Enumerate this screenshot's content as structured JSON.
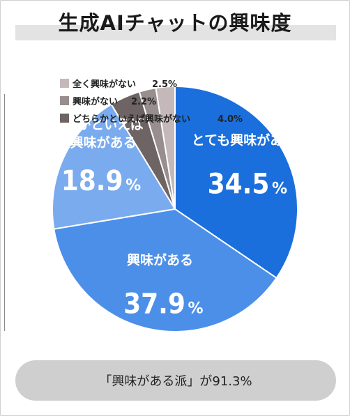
{
  "title": "生成AIチャットの興味度",
  "footer": "「興味がある派」が91.3%",
  "chart_data": {
    "type": "pie",
    "title": "生成AIチャットの興味度",
    "slices": [
      {
        "label": "とても興味がある",
        "value": 34.5,
        "value_text": "34.5",
        "color": "#1a6fdc"
      },
      {
        "label": "興味がある",
        "value": 37.9,
        "value_text": "37.9",
        "color": "#4c8fe8"
      },
      {
        "label": "どちらかといえば興味がある",
        "label_lines": [
          "どちらかといえば",
          "興味がある"
        ],
        "value": 18.9,
        "value_text": "18.9",
        "color": "#79abee"
      },
      {
        "label": "どちらかといえば興味がない",
        "value": 4.0,
        "value_text": "4.0%",
        "color": "#6e6464"
      },
      {
        "label": "興味がない",
        "value": 2.2,
        "value_text": "2.2%",
        "color": "#988e8e"
      },
      {
        "label": "全く興味がない",
        "value": 2.5,
        "value_text": "2.5%",
        "color": "#c4b8b8"
      }
    ],
    "percent_sign": "%",
    "legend_order": [
      "全く興味がない",
      "興味がない",
      "どちらかといえば興味がない"
    ],
    "legend_placement": "top-left"
  }
}
